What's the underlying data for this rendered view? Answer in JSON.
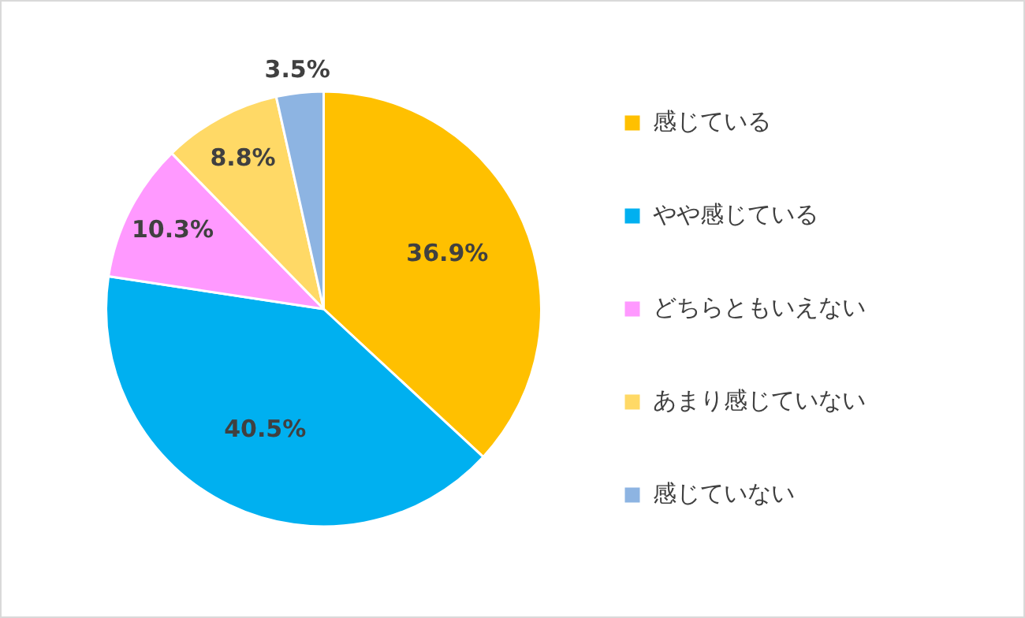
{
  "chart_data": {
    "type": "pie",
    "categories": [
      "感じている",
      "やや感じている",
      "どちらともいえない",
      "あまり感じていない",
      "感じていない"
    ],
    "values": [
      36.9,
      40.5,
      10.3,
      8.8,
      3.5
    ],
    "colors": [
      "#ffc000",
      "#00b0f0",
      "#ff99ff",
      "#ffd966",
      "#8db4e2"
    ],
    "value_labels": [
      "36.9%",
      "40.5%",
      "10.3%",
      "8.8%",
      "3.5%"
    ],
    "legend": "right"
  }
}
